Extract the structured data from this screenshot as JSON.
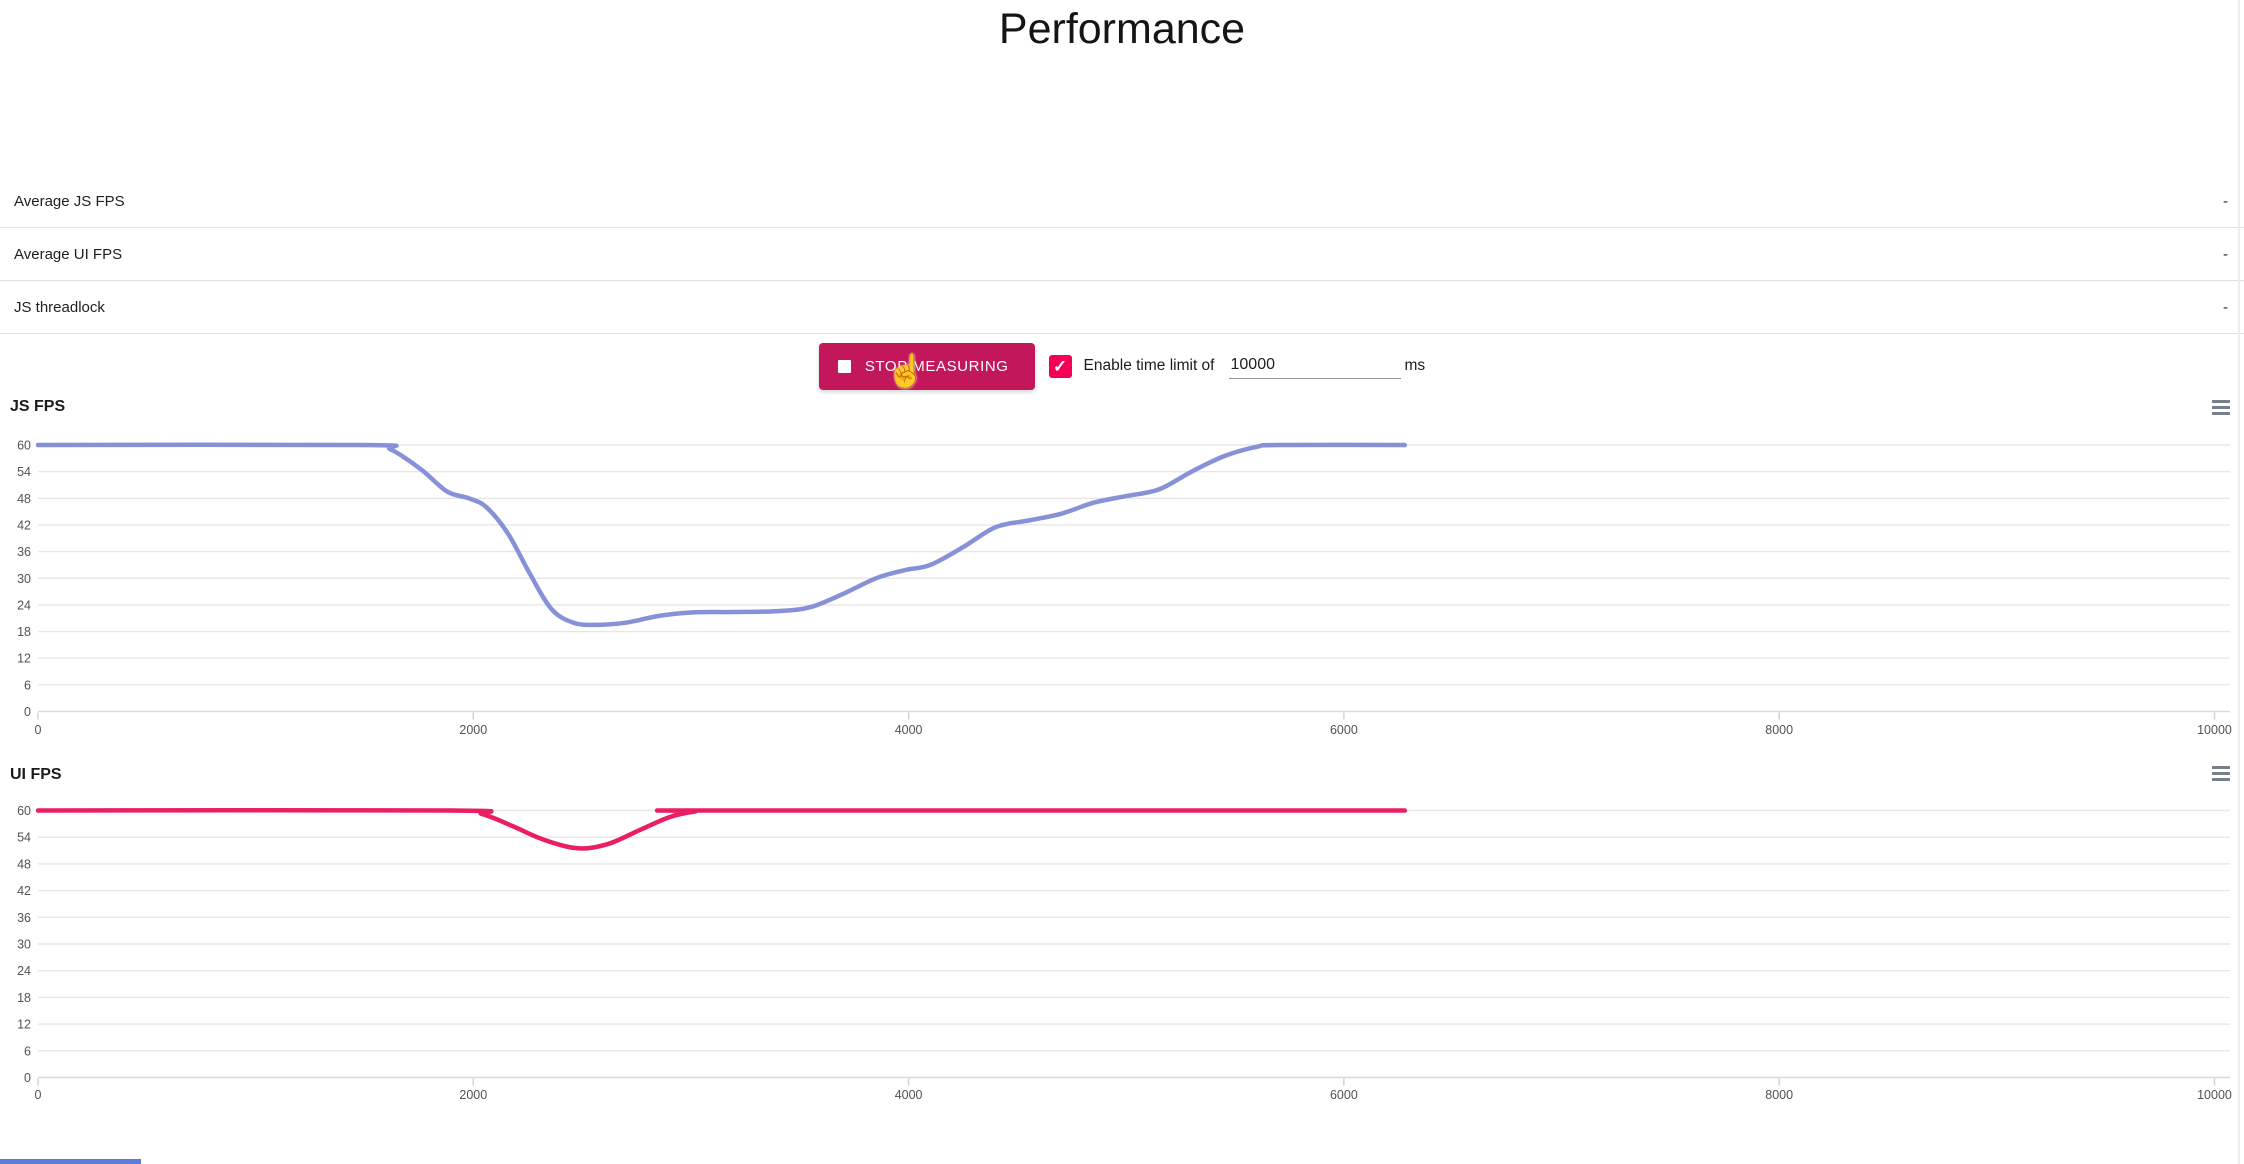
{
  "page": {
    "title": "Performance"
  },
  "stats": {
    "rows": [
      {
        "label": "Average JS FPS",
        "value": "-"
      },
      {
        "label": "Average UI FPS",
        "value": "-"
      },
      {
        "label": "JS threadlock",
        "value": "-"
      }
    ]
  },
  "controls": {
    "stop_button": {
      "label": "STOP MEASURING",
      "color": "#c2185b",
      "icon": "stop-square-icon"
    },
    "time_limit": {
      "checkbox_checked": true,
      "checkbox_color": "#f50057",
      "check_glyph": "✓",
      "label": "Enable time limit of",
      "input_value": "10000",
      "unit": "ms"
    }
  },
  "chart_data": [
    {
      "type": "line",
      "title": "JS FPS",
      "xlabel": "",
      "ylabel": "",
      "xlim": [
        0,
        10000
      ],
      "ylim": [
        0,
        60
      ],
      "xticks": [
        0,
        2000,
        4000,
        6000,
        8000,
        10000
      ],
      "yticks": [
        0,
        6,
        12,
        18,
        24,
        30,
        36,
        42,
        48,
        54,
        60
      ],
      "grid": true,
      "legend_position": "none",
      "menu_icon": "hamburger-menu-icon",
      "series": [
        {
          "name": "JS FPS",
          "color": "#8691d8",
          "points": [
            [
              0,
              60
            ],
            [
              1500,
              60
            ],
            [
              1620,
              59
            ],
            [
              1760,
              54.5
            ],
            [
              1880,
              49.5
            ],
            [
              1980,
              48
            ],
            [
              2060,
              46
            ],
            [
              2160,
              40
            ],
            [
              2260,
              31
            ],
            [
              2360,
              23
            ],
            [
              2460,
              20
            ],
            [
              2560,
              19.5
            ],
            [
              2700,
              20
            ],
            [
              2850,
              21.5
            ],
            [
              3000,
              22.3
            ],
            [
              3200,
              22.4
            ],
            [
              3400,
              22.6
            ],
            [
              3550,
              23.5
            ],
            [
              3700,
              26.5
            ],
            [
              3850,
              30
            ],
            [
              3980,
              31.8
            ],
            [
              4100,
              33
            ],
            [
              4250,
              37
            ],
            [
              4400,
              41.5
            ],
            [
              4550,
              43
            ],
            [
              4700,
              44.5
            ],
            [
              4850,
              47
            ],
            [
              5000,
              48.5
            ],
            [
              5150,
              50
            ],
            [
              5300,
              54
            ],
            [
              5450,
              57.5
            ],
            [
              5600,
              59.6
            ],
            [
              5700,
              60
            ],
            [
              6280,
              60
            ]
          ]
        }
      ]
    },
    {
      "type": "line",
      "title": "UI FPS",
      "xlabel": "",
      "ylabel": "",
      "xlim": [
        0,
        10000
      ],
      "ylim": [
        0,
        60
      ],
      "xticks": [
        0,
        2000,
        4000,
        6000,
        8000,
        10000
      ],
      "yticks": [
        0,
        6,
        12,
        18,
        24,
        30,
        36,
        42,
        48,
        54,
        60
      ],
      "grid": true,
      "legend_position": "none",
      "menu_icon": "hamburger-menu-icon",
      "series": [
        {
          "name": "UI FPS",
          "color": "#e91e63",
          "points": [
            [
              0,
              60
            ],
            [
              1900,
              60
            ],
            [
              2040,
              59.2
            ],
            [
              2180,
              56.5
            ],
            [
              2320,
              53.5
            ],
            [
              2480,
              51.5
            ],
            [
              2620,
              52.5
            ],
            [
              2760,
              55.5
            ],
            [
              2900,
              58.5
            ],
            [
              3020,
              59.8
            ],
            [
              3100,
              60
            ],
            [
              6280,
              60
            ]
          ]
        }
      ]
    }
  ]
}
